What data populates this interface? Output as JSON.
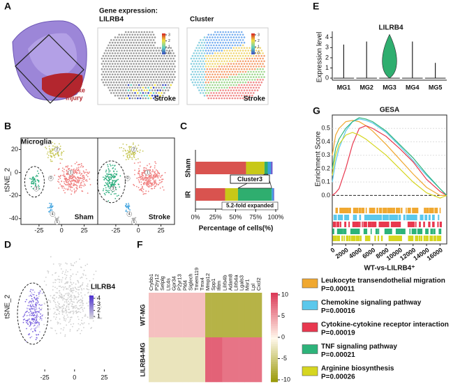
{
  "panel_a": {
    "label": "A",
    "brain_caption": [
      "Stroke",
      "injury"
    ],
    "expression_title": [
      "Gene expression:",
      "LILRB4"
    ],
    "cluster_title": "Cluster",
    "colorbar_ticks": [
      3,
      2,
      1,
      0
    ],
    "stroke_labels": [
      "Stroke",
      "Stroke"
    ]
  },
  "panel_b": {
    "label": "B",
    "title": "Microglia",
    "y_label": "tSNE_2",
    "xlim": [
      -45,
      40
    ],
    "ylim": [
      -45,
      30
    ],
    "xticks": [
      -25,
      0,
      25
    ],
    "yticks": [
      -40,
      -20,
      0,
      20
    ],
    "conditions": [
      "Sham",
      "Stroke"
    ],
    "cluster_labels": [
      "0",
      "1",
      "2",
      "3",
      "4",
      "5"
    ]
  },
  "panel_c": {
    "label": "C",
    "type": "stacked_bar",
    "categories": [
      "Sham",
      "IR"
    ],
    "xlim": [
      0,
      100
    ],
    "xticks": [
      {
        "value": 0,
        "label": "0%"
      },
      {
        "value": 25,
        "label": "25%"
      },
      {
        "value": 50,
        "label": "50%"
      },
      {
        "value": 75,
        "label": "75%"
      },
      {
        "value": 100,
        "label": "100%"
      }
    ],
    "x_label": "Percentage of cells(%)",
    "annotations": [
      "Cluster3",
      "5.2-fold expanded"
    ],
    "series": [
      {
        "color": "#d9534f",
        "values": [
          63,
          37
        ]
      },
      {
        "color": "#c8c818",
        "values": [
          23,
          16
        ]
      },
      {
        "color": "#2fae6f",
        "values": [
          4,
          42
        ]
      },
      {
        "color": "#3aa0e0",
        "values": [
          4,
          2
        ]
      },
      {
        "color": "#6a5acd",
        "values": [
          2,
          1
        ]
      }
    ]
  },
  "panel_d": {
    "label": "D",
    "gene": "LILRB4",
    "y_label": "tSNE_2",
    "xlim": [
      -45,
      40
    ],
    "xticks": [
      -25,
      0,
      25
    ],
    "legend_ticks": [
      4,
      3,
      2,
      1
    ]
  },
  "panel_e": {
    "label": "E",
    "type": "violin",
    "title": "LILRB4",
    "y_label": "Expression level",
    "ylim": [
      -0.2,
      4.6
    ],
    "yticks": [
      0,
      1,
      2,
      3,
      4
    ],
    "categories": [
      "MG1",
      "MG2",
      "MG3",
      "MG4",
      "MG5"
    ],
    "values": [
      3.3,
      3.6,
      4.3,
      3.6,
      1.5
    ]
  },
  "panel_f": {
    "label": "F",
    "genes": [
      "Crybb1",
      "P2ry12",
      "Selplg",
      "Ltc4s",
      "Gpr34",
      "P2yr13",
      "Pld4",
      "Siglech",
      "Tmem119",
      "Tmx4",
      "Mmp12",
      "Spp1",
      "Ifitm",
      "Lilrb4b",
      "Adam8",
      "Lilrb4a",
      "Lgals3",
      "Msr1",
      "Lpl",
      "Cxcl2"
    ],
    "rows": [
      "WT-MG",
      "LILRB4-MG"
    ],
    "values": [
      [
        3,
        3,
        3,
        3,
        3,
        3,
        3,
        3,
        3,
        3,
        -7,
        -7,
        -7,
        -7,
        -7,
        -7,
        -7,
        -7,
        -7,
        -7
      ],
      [
        -2,
        -2,
        -2,
        -2,
        -2,
        -2,
        -2,
        -2,
        -2,
        -2,
        8,
        8,
        8,
        7,
        7,
        7,
        7,
        7,
        7,
        7
      ]
    ],
    "colorbar_lim": [
      -10,
      10
    ],
    "colorbar_ticks": [
      10,
      5,
      0,
      -5,
      -10
    ]
  },
  "panel_g": {
    "label": "G",
    "type": "line",
    "title": "GESA",
    "y_label": "Enrichment Score",
    "x_label": "WT-vs-LILRB4⁺",
    "xlim": [
      0,
      17000
    ],
    "ylim": [
      -0.05,
      0.6
    ],
    "xticks": [
      0,
      2000,
      4000,
      6000,
      8000,
      10000,
      12000,
      14000,
      16000
    ],
    "yticks": [
      {
        "value": 0,
        "label": "0.0"
      },
      0.1,
      0.2,
      0.3,
      0.4,
      0.5
    ],
    "x": [
      0,
      500,
      1000,
      2000,
      3000,
      4000,
      5000,
      6000,
      8000,
      10000,
      12000,
      14000,
      16000,
      17000
    ],
    "series": [
      {
        "name": "Leukocyte transendothelial migration",
        "p_label": "P=0.00011",
        "color": "#f0a830",
        "values": [
          0.3,
          0.45,
          0.5,
          0.55,
          0.56,
          0.55,
          0.52,
          0.48,
          0.38,
          0.27,
          0.16,
          0.06,
          0.0,
          0.0
        ]
      },
      {
        "name": "Chemokine signaling pathway",
        "p_label": "P=0.00016",
        "color": "#5bc8ec",
        "values": [
          0.1,
          0.25,
          0.35,
          0.48,
          0.55,
          0.57,
          0.56,
          0.54,
          0.47,
          0.37,
          0.26,
          0.15,
          0.05,
          0.0
        ]
      },
      {
        "name": "Cytokine-cytokine receptor interaction",
        "p_label": "P=0.00019",
        "color": "#e8384f",
        "values": [
          0.0,
          0.02,
          0.05,
          0.2,
          0.38,
          0.5,
          0.52,
          0.5,
          0.44,
          0.35,
          0.25,
          0.12,
          0.03,
          0.0
        ]
      },
      {
        "name": "TNF signaling pathway",
        "p_label": "P=0.00021",
        "color": "#2db37a",
        "values": [
          0.2,
          0.35,
          0.42,
          0.5,
          0.55,
          0.58,
          0.57,
          0.55,
          0.48,
          0.38,
          0.28,
          0.16,
          0.05,
          0.0
        ]
      },
      {
        "name": "Arginine biosynthesis",
        "p_label": "P=0.00026",
        "color": "#d6d620",
        "values": [
          0.15,
          0.3,
          0.38,
          0.45,
          0.47,
          0.45,
          0.42,
          0.38,
          0.3,
          0.2,
          0.1,
          0.02,
          -0.02,
          0.0
        ]
      }
    ]
  }
}
